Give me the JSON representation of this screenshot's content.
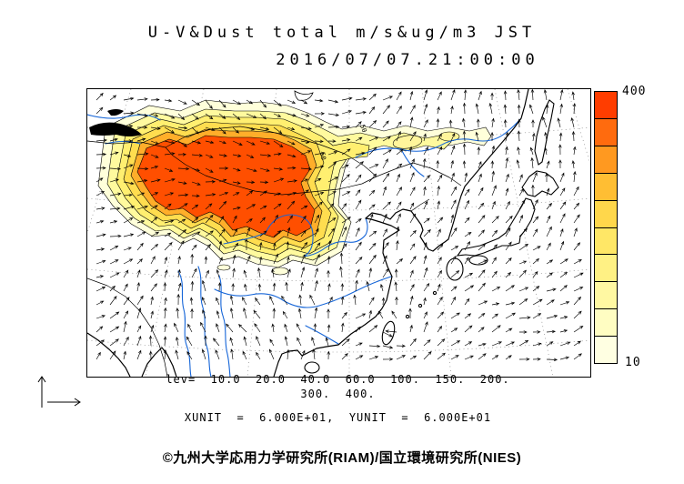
{
  "header": {
    "title": "U-V&Dust total m/s&ug/m3 JST",
    "datetime": "2016/07/07.21:00:00"
  },
  "map": {
    "contour_label": "50"
  },
  "colorbar": {
    "max_label": "400",
    "min_label": "10",
    "segment_colors_bottom_to_top": [
      "#FFFFE2",
      "#FFFDC2",
      "#FFF8A2",
      "#FFF184",
      "#FFE766",
      "#FFD74B",
      "#FFBE33",
      "#FF9920",
      "#FF6B0E",
      "#FF3D00"
    ]
  },
  "footer": {
    "levels_line1": "lev=  10.0  20.0  40.0  60.0  100.  150.  200.",
    "levels_line2": "300.  400.",
    "units_line": "XUNIT  =  6.000E+01,  YUNIT  =  6.000E+01",
    "copyright": "©九州大学応用力学研究所(RIAM)/国立環境研究所(NIES)"
  },
  "chart_data": {
    "type": "heatmap",
    "title": "U-V&Dust total m/s&ug/m3 JST",
    "datetime": "2016/07/07.21:00:00",
    "timezone": "JST",
    "region": "East Asia (China, Mongolia, Korea, Japan)",
    "fill_variable": "Dust total concentration",
    "fill_units": "ug/m3",
    "vector_variable": "U-V wind",
    "vector_units": "m/s",
    "contour_levels": [
      10.0,
      20.0,
      40.0,
      60.0,
      100,
      150,
      200,
      300,
      400
    ],
    "colorbar_range": [
      10,
      400
    ],
    "colorbar_position": "right",
    "contour_labels_on_map": [
      "50"
    ],
    "xunit": "6.000E+01",
    "yunit": "6.000E+01",
    "max_region_note": "Dust maximum (>=400 ug/m3, red fill) over Mongolia and northern China; yellow plume tail extends east toward northeast China"
  }
}
